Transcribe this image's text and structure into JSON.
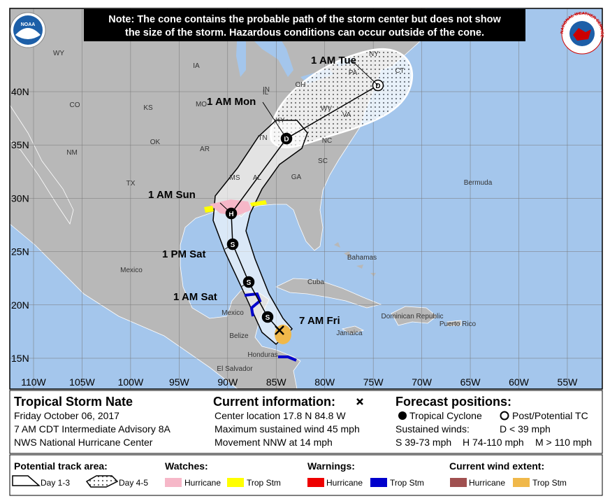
{
  "note_lines": [
    "Note: The cone contains the probable path of the storm center but does not show",
    "the size of the storm. Hazardous conditions can occur outside of the cone."
  ],
  "logos": {
    "noaa": "NOAA",
    "nws": "NATIONAL WEATHER SERVICE"
  },
  "map": {
    "lat_labels": [
      "40N",
      "35N",
      "30N",
      "25N",
      "20N",
      "15N"
    ],
    "lon_labels": [
      "110W",
      "105W",
      "100W",
      "95W",
      "90W",
      "85W",
      "80W",
      "75W",
      "70W",
      "65W",
      "60W",
      "55W"
    ],
    "region_labels": [
      "WY",
      "IA",
      "IL",
      "IN",
      "OH",
      "PA",
      "NY",
      "CT",
      "CO",
      "KS",
      "MO",
      "KY",
      "WV",
      "VA",
      "NM",
      "OK",
      "AR",
      "TN",
      "NC",
      "SC",
      "TX",
      "MS",
      "AL",
      "GA",
      "Mexico",
      "Cuba",
      "Bahamas",
      "Bermuda",
      "Jamaica",
      "Dominican Republic",
      "Puerto Rico",
      "Belize",
      "Honduras",
      "El Salvador",
      "Mexico"
    ],
    "forecast_points": [
      {
        "time": "1 AM Tue",
        "symbol": "D"
      },
      {
        "time": "1 AM Mon",
        "symbol": "D"
      },
      {
        "time": "1 AM Sun",
        "symbol": "H"
      },
      {
        "time": "1 PM Sat",
        "symbol": "S"
      },
      {
        "time": "1 AM Sat",
        "symbol": "S"
      },
      {
        "time": null,
        "symbol": "S"
      },
      {
        "time": "7 AM Fri",
        "symbol": null
      }
    ]
  },
  "storm": {
    "name": "Tropical Storm Nate",
    "date": "Friday October 06, 2017",
    "advisory": "7 AM CDT Intermediate Advisory 8A",
    "center": "NWS National Hurricane Center"
  },
  "current": {
    "heading": "Current information:",
    "lines": [
      "Center location 17.8 N 84.8 W",
      "Maximum sustained wind 45 mph",
      "Movement NNW at 14 mph"
    ]
  },
  "forecast": {
    "heading": "Forecast positions:",
    "tropical": "Tropical Cyclone",
    "post": "Post/Potential TC",
    "winds": "Sustained winds:",
    "d": "D < 39 mph",
    "s": "S 39-73 mph",
    "h": "H 74-110 mph",
    "m": "M > 110 mph"
  },
  "legend": {
    "track": {
      "heading": "Potential track area:",
      "day13": "Day 1-3",
      "day45": "Day 4-5"
    },
    "watches": {
      "heading": "Watches:",
      "hurricane": "Hurricane",
      "trop": "Trop Stm"
    },
    "warnings": {
      "heading": "Warnings:",
      "hurricane": "Hurricane",
      "trop": "Trop Stm"
    },
    "wind": {
      "heading": "Current wind extent:",
      "hurricane": "Hurricane",
      "trop": "Trop Stm"
    }
  }
}
